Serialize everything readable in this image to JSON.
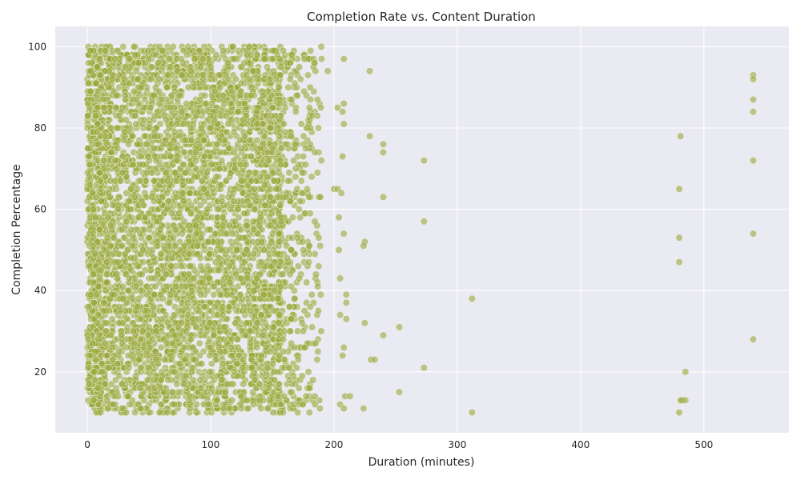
{
  "chart_data": {
    "type": "scatter",
    "title": "Completion Rate vs. Content Duration",
    "xlabel": "Duration (minutes)",
    "ylabel": "Completion Percentage",
    "xlim": [
      -26,
      569
    ],
    "ylim": [
      5,
      105
    ],
    "xticks": [
      0,
      100,
      200,
      300,
      400,
      500
    ],
    "yticks": [
      20,
      40,
      60,
      80,
      100
    ],
    "grid": true,
    "legend": "none",
    "colors": {
      "point": "#9aa83c",
      "plot_background": "#eaeaf2",
      "grid": "#ffffff"
    },
    "dense_region": {
      "description_of_distribution": "thousands of points densely filling duration 0–190 minutes, completion 10–100",
      "x_range": [
        0,
        190
      ],
      "y_range": [
        10,
        100
      ]
    },
    "points": [
      {
        "x": 195,
        "y": 94
      },
      {
        "x": 208,
        "y": 97
      },
      {
        "x": 229,
        "y": 94
      },
      {
        "x": 203,
        "y": 85
      },
      {
        "x": 208,
        "y": 86
      },
      {
        "x": 207,
        "y": 84
      },
      {
        "x": 208,
        "y": 81
      },
      {
        "x": 229,
        "y": 78
      },
      {
        "x": 240,
        "y": 76
      },
      {
        "x": 240,
        "y": 74
      },
      {
        "x": 207,
        "y": 73
      },
      {
        "x": 273,
        "y": 72
      },
      {
        "x": 200,
        "y": 65
      },
      {
        "x": 203,
        "y": 65
      },
      {
        "x": 206,
        "y": 64
      },
      {
        "x": 240,
        "y": 63
      },
      {
        "x": 204,
        "y": 58
      },
      {
        "x": 273,
        "y": 57
      },
      {
        "x": 208,
        "y": 54
      },
      {
        "x": 225,
        "y": 52
      },
      {
        "x": 224,
        "y": 51
      },
      {
        "x": 204,
        "y": 50
      },
      {
        "x": 205,
        "y": 43
      },
      {
        "x": 210,
        "y": 39
      },
      {
        "x": 210,
        "y": 37
      },
      {
        "x": 312,
        "y": 38
      },
      {
        "x": 205,
        "y": 34
      },
      {
        "x": 210,
        "y": 33
      },
      {
        "x": 225,
        "y": 32
      },
      {
        "x": 253,
        "y": 31
      },
      {
        "x": 240,
        "y": 29
      },
      {
        "x": 208,
        "y": 26
      },
      {
        "x": 207,
        "y": 24
      },
      {
        "x": 230,
        "y": 23
      },
      {
        "x": 233,
        "y": 23
      },
      {
        "x": 273,
        "y": 21
      },
      {
        "x": 253,
        "y": 15
      },
      {
        "x": 209,
        "y": 14
      },
      {
        "x": 213,
        "y": 14
      },
      {
        "x": 205,
        "y": 12
      },
      {
        "x": 208,
        "y": 11
      },
      {
        "x": 224,
        "y": 11
      },
      {
        "x": 312,
        "y": 10
      },
      {
        "x": 481,
        "y": 78
      },
      {
        "x": 480,
        "y": 65
      },
      {
        "x": 480,
        "y": 53
      },
      {
        "x": 480,
        "y": 47
      },
      {
        "x": 485,
        "y": 20
      },
      {
        "x": 481,
        "y": 13
      },
      {
        "x": 482,
        "y": 13
      },
      {
        "x": 485,
        "y": 13
      },
      {
        "x": 480,
        "y": 10
      },
      {
        "x": 540,
        "y": 93
      },
      {
        "x": 540,
        "y": 92
      },
      {
        "x": 540,
        "y": 87
      },
      {
        "x": 540,
        "y": 84
      },
      {
        "x": 540,
        "y": 72
      },
      {
        "x": 540,
        "y": 54
      },
      {
        "x": 540,
        "y": 28
      }
    ]
  }
}
